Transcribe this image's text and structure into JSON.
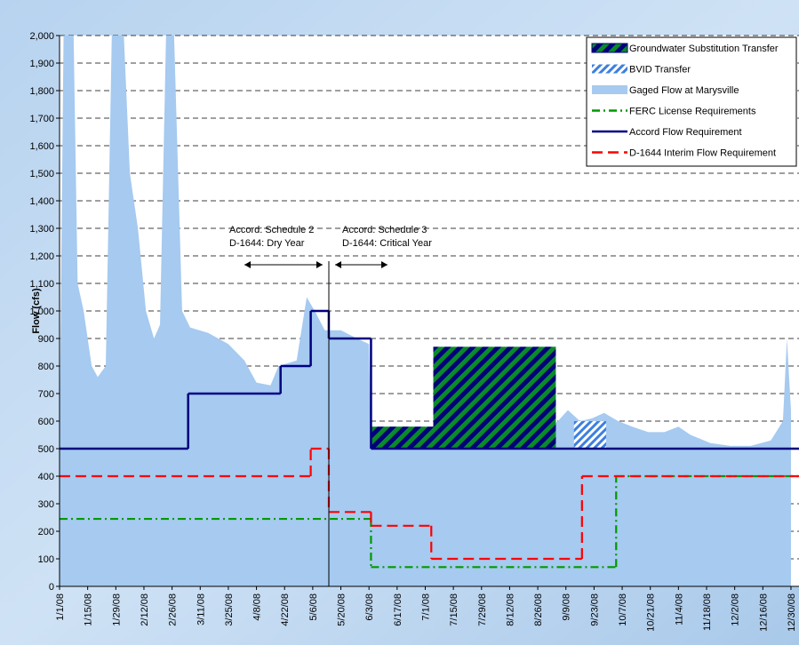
{
  "chart_data": {
    "type": "line",
    "ylabel": "Flow (cfs)",
    "ylim": [
      0,
      2000
    ],
    "yticks": [
      0,
      100,
      200,
      300,
      400,
      500,
      600,
      700,
      800,
      900,
      {
        "value": 1000,
        "label": "1,000"
      },
      {
        "value": 1100,
        "label": "1,100"
      },
      {
        "value": 1200,
        "label": "1,200"
      },
      {
        "value": 1300,
        "label": "1,300"
      },
      {
        "value": 1400,
        "label": "1,400"
      },
      {
        "value": 1500,
        "label": "1,500"
      },
      {
        "value": 1600,
        "label": "1,600"
      },
      {
        "value": 1700,
        "label": "1,700"
      },
      {
        "value": 1800,
        "label": "1,800"
      },
      {
        "value": 1900,
        "label": "1,900"
      },
      {
        "value": 2000,
        "label": "2,000"
      }
    ],
    "xlim": [
      "1/1/08",
      "1/3/09"
    ],
    "xticks": [
      "1/1/08",
      "1/15/08",
      "1/29/08",
      "2/12/08",
      "2/26/08",
      "3/11/08",
      "3/25/08",
      "4/8/08",
      "4/22/08",
      "5/6/08",
      "5/20/08",
      "6/3/08",
      "6/17/08",
      "7/1/08",
      "7/15/08",
      "7/29/08",
      "8/12/08",
      "8/26/08",
      "9/9/08",
      "9/23/08",
      "10/7/08",
      "10/21/08",
      "11/4/08",
      "11/18/08",
      "12/2/08",
      "12/16/08",
      "12/30/08"
    ],
    "grid": true,
    "legend": "upper right",
    "annotations": [
      {
        "lines": [
          "Accord: Schedule 2",
          "D-1644: Dry Year"
        ]
      },
      {
        "lines": [
          "Accord: Schedule 3",
          "D-1644: Critical Year"
        ]
      }
    ],
    "series": [
      {
        "name": "Groundwater Substitution Transfer",
        "kind": "stack",
        "on": "Accord Flow Requirement",
        "color": "#0a8a2a",
        "x": [
          "6/4/08",
          "7/5/08",
          "9/4/08"
        ],
        "values": [
          80,
          370,
          0
        ]
      },
      {
        "name": "BVID Transfer",
        "kind": "stack",
        "on": "Accord Flow Requirement",
        "color": "#3d7fe0",
        "x": [
          "9/13/08",
          "9/29/08"
        ],
        "values": [
          100,
          0
        ]
      },
      {
        "name": "Gaged Flow at Marysville",
        "kind": "area",
        "color": "#a6caf0",
        "x": [
          "1/1/08",
          "1/3/08",
          "1/8/08",
          "1/10/08",
          "1/13/08",
          "1/17/08",
          "1/20/08",
          "1/24/08",
          "1/27/08",
          "2/2/08",
          "2/5/08",
          "2/9/08",
          "2/13/08",
          "2/17/08",
          "2/20/08",
          "2/23/08",
          "2/27/08",
          "3/2/08",
          "3/6/08",
          "3/15/08",
          "3/25/08",
          "4/2/08",
          "4/8/08",
          "4/15/08",
          "4/19/08",
          "4/28/08",
          "5/3/08",
          "5/7/08",
          "5/12/08",
          "5/20/08",
          "5/28/08",
          "6/3/08",
          "6/4/08",
          "6/10/08",
          "6/20/08",
          "7/1/08",
          "7/10/08",
          "7/20/08",
          "8/1/08",
          "8/15/08",
          "8/25/08",
          "8/30/08",
          "9/5/08",
          "9/10/08",
          "9/16/08",
          "9/22/08",
          "9/28/08",
          "10/5/08",
          "10/12/08",
          "10/20/08",
          "10/28/08",
          "11/4/08",
          "11/10/08",
          "11/20/08",
          "11/30/08",
          "12/10/08",
          "12/20/08",
          "12/26/08",
          "12/28/08",
          "12/30/08"
        ],
        "values": [
          540,
          2000,
          2000,
          1100,
          1000,
          800,
          760,
          800,
          2000,
          2000,
          1500,
          1300,
          1000,
          900,
          950,
          2000,
          2000,
          1000,
          940,
          920,
          880,
          820,
          740,
          730,
          800,
          820,
          1050,
          1000,
          930,
          930,
          900,
          880,
          500,
          560,
          580,
          560,
          580,
          590,
          600,
          610,
          600,
          560,
          600,
          640,
          600,
          610,
          630,
          600,
          580,
          560,
          560,
          580,
          550,
          520,
          510,
          510,
          530,
          600,
          900,
          640
        ]
      },
      {
        "name": "FERC License Requirements",
        "kind": "step",
        "color": "#009900",
        "dash": "9,4,2,4",
        "x": [
          "1/1/08",
          "6/4/08",
          "10/4/08"
        ],
        "values": [
          245,
          70,
          400
        ]
      },
      {
        "name": "Accord Flow Requirement",
        "kind": "step",
        "color": "#000080",
        "x": [
          "1/1/08",
          "3/5/08",
          "4/20/08",
          "5/5/08",
          "5/14/08",
          "6/4/08"
        ],
        "values": [
          500,
          700,
          800,
          1000,
          900,
          500
        ]
      },
      {
        "name": "D-1644 Interim Flow Requirement",
        "kind": "step",
        "color": "#ff0000",
        "dash": "12,6",
        "x": [
          "1/1/08",
          "5/5/08",
          "5/14/08",
          "6/4/08",
          "7/4/08",
          "9/17/08"
        ],
        "values": [
          400,
          500,
          270,
          220,
          100,
          400
        ]
      }
    ]
  }
}
